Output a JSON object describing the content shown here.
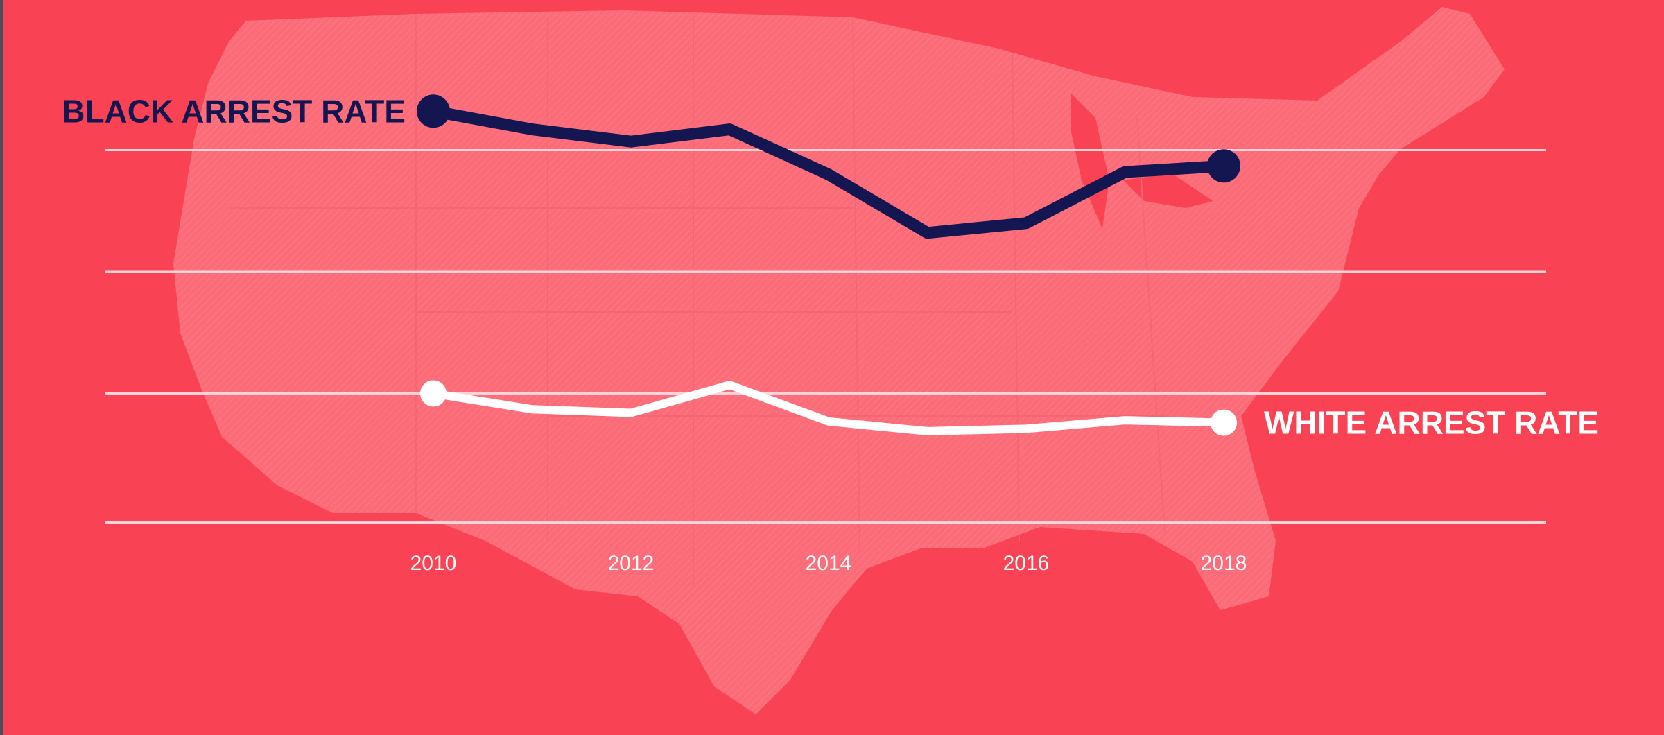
{
  "colors": {
    "background": "#f94355",
    "map": "#fb6c78",
    "gridline": "#fbd3d8",
    "black_series": "#141651",
    "white_series": "#ffffff",
    "tick_label": "#ffffff"
  },
  "chart_data": {
    "type": "line",
    "title": "",
    "xlabel": "",
    "ylabel": "",
    "x": [
      2010,
      2011,
      2012,
      2013,
      2014,
      2015,
      2016,
      2017,
      2018
    ],
    "x_tick_labels": [
      "2010",
      "2012",
      "2014",
      "2016",
      "2018"
    ],
    "ylim": [
      0,
      4
    ],
    "y_gridlines": [
      0.02,
      1.08,
      2.08,
      3.08
    ],
    "grid": true,
    "background_image": "united-states-map",
    "series": [
      {
        "name": "BLACK ARREST RATE",
        "color": "#141651",
        "label_position": "left-of-start",
        "values": [
          3.4,
          3.25,
          3.15,
          3.25,
          2.88,
          2.4,
          2.48,
          2.9,
          2.95
        ]
      },
      {
        "name": "WHITE ARREST RATE",
        "color": "#ffffff",
        "label_position": "right-of-end",
        "values": [
          1.08,
          0.95,
          0.92,
          1.15,
          0.85,
          0.77,
          0.79,
          0.86,
          0.84
        ]
      }
    ]
  }
}
